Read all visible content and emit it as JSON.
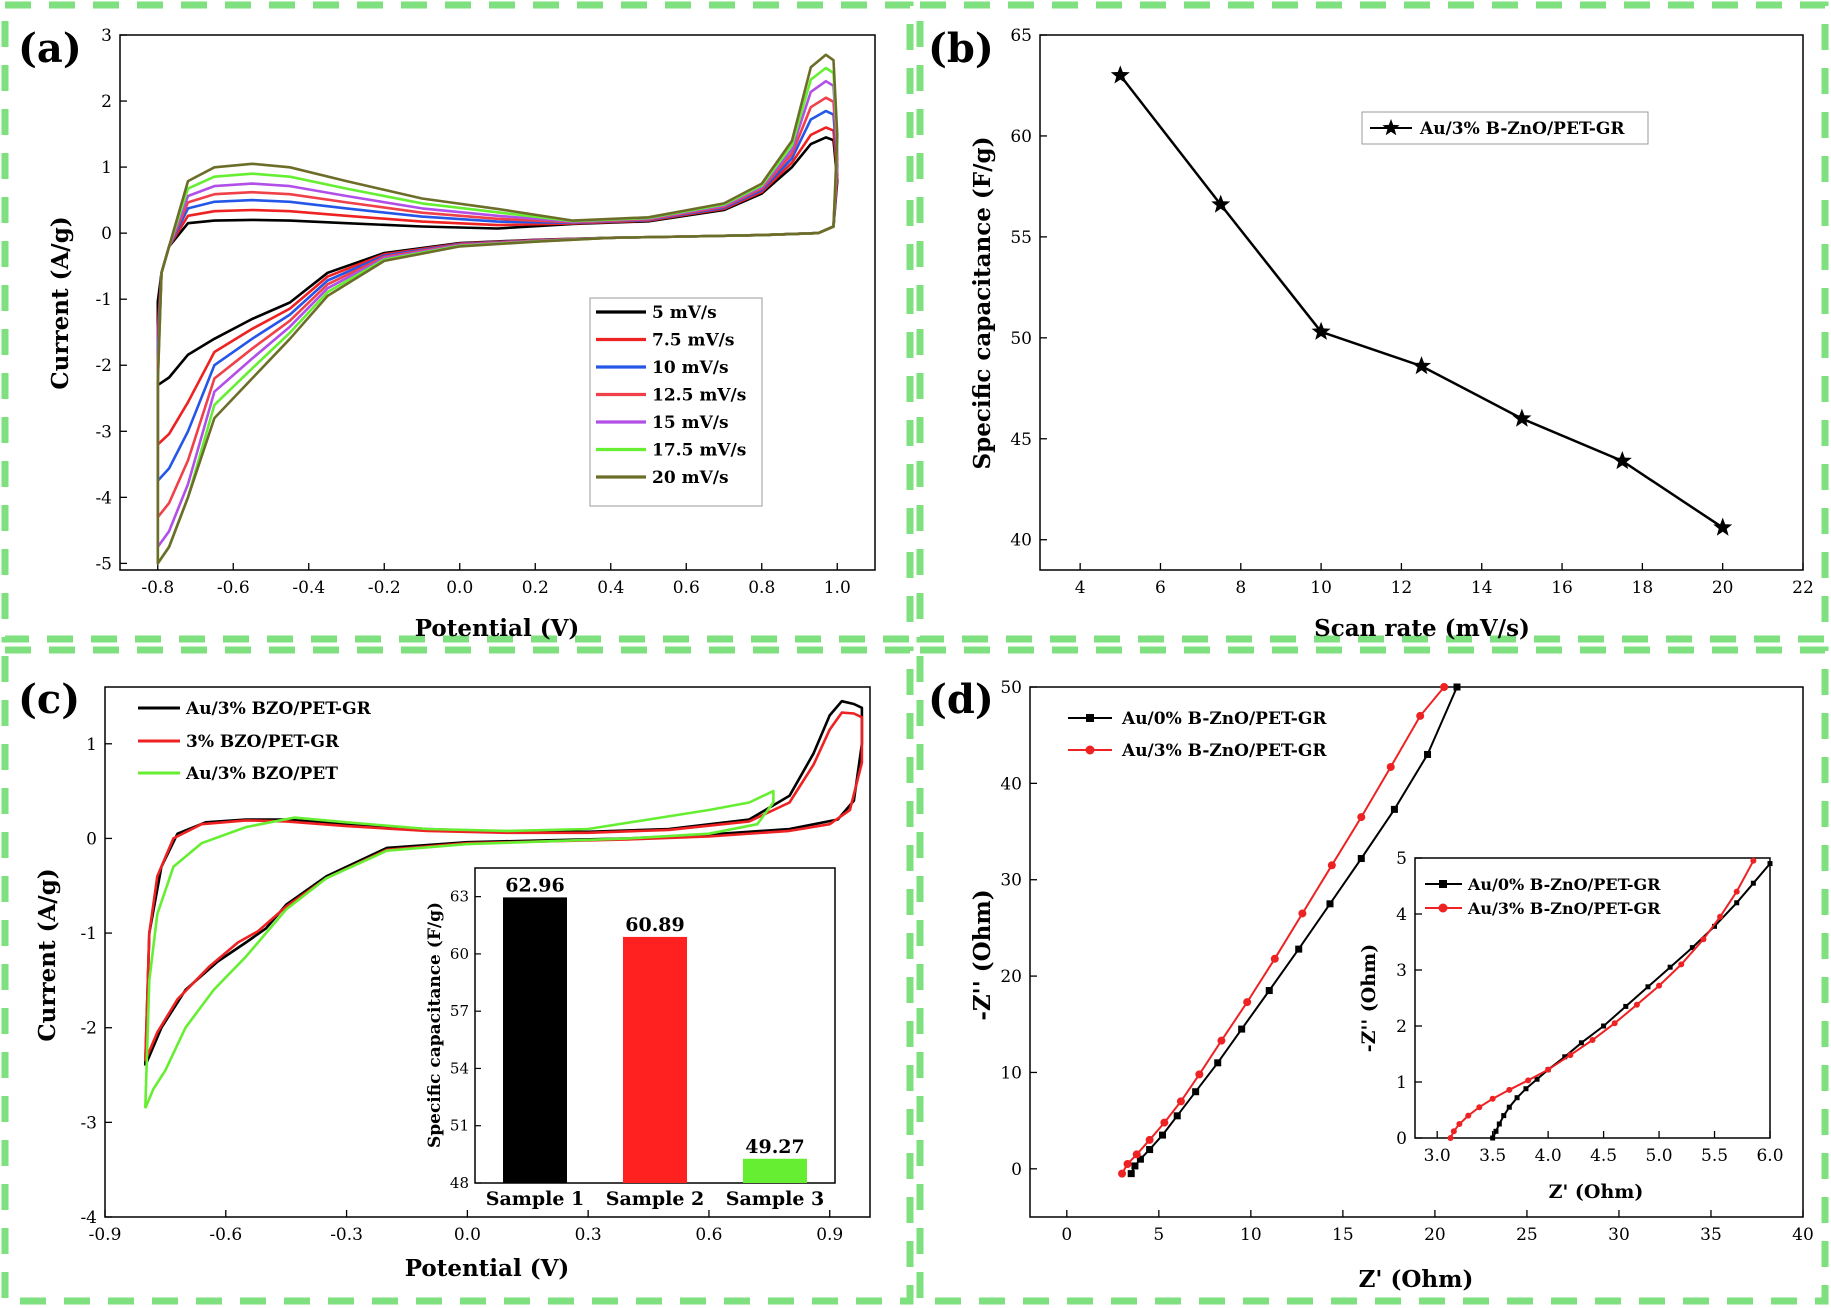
{
  "panels": {
    "a": "(a)",
    "b": "(b)",
    "c": "(c)",
    "d": "(d)"
  },
  "colors": {
    "frame": "#7ee07e",
    "black": "#000000",
    "red": "#ee2222",
    "blue": "#2457e8",
    "red2": "#f0404a",
    "violet": "#b14fe8",
    "green": "#66ee33",
    "olive": "#6d6d2a"
  },
  "chart_data": [
    {
      "id": "a",
      "type": "line",
      "xlabel": "Potential (V)",
      "ylabel": "Current (A/g)",
      "xlim": [
        -0.9,
        1.1
      ],
      "ylim": [
        -5.1,
        3
      ],
      "xticks": [
        "-0.8",
        "-0.6",
        "-0.4",
        "-0.2",
        "0.0",
        "0.2",
        "0.4",
        "0.6",
        "0.8",
        "1.0"
      ],
      "yticks": [
        "-5",
        "-4",
        "-3",
        "-2",
        "-1",
        "0",
        "1",
        "2",
        "3"
      ],
      "legend_position": "center-right",
      "series": [
        {
          "name": "5 mV/s",
          "color": "#000000",
          "anodic_peak": 1.45,
          "cathodic_min": -2.3,
          "mid_top": 0.2
        },
        {
          "name": "7.5 mV/s",
          "color": "#ee2222",
          "anodic_peak": 1.6,
          "cathodic_min": -3.2,
          "mid_top": 0.35
        },
        {
          "name": "10 mV/s",
          "color": "#2457e8",
          "anodic_peak": 1.85,
          "cathodic_min": -3.75,
          "mid_top": 0.5
        },
        {
          "name": "12.5 mV/s",
          "color": "#f0404a",
          "anodic_peak": 2.05,
          "cathodic_min": -4.3,
          "mid_top": 0.62
        },
        {
          "name": "15 mV/s",
          "color": "#b14fe8",
          "anodic_peak": 2.3,
          "cathodic_min": -4.75,
          "mid_top": 0.75
        },
        {
          "name": "17.5 mV/s",
          "color": "#66ee33",
          "anodic_peak": 2.5,
          "cathodic_min": -5.0,
          "mid_top": 0.9
        },
        {
          "name": "20 mV/s",
          "color": "#6d6d2a",
          "anodic_peak": 2.7,
          "cathodic_min": -5.0,
          "mid_top": 1.05
        }
      ]
    },
    {
      "id": "b",
      "type": "line",
      "xlabel": "Scan rate (mV/s)",
      "ylabel": "Specific capacitance (F/g)",
      "xlim": [
        3,
        22
      ],
      "ylim": [
        38.5,
        65
      ],
      "xticks": [
        "4",
        "6",
        "8",
        "10",
        "12",
        "14",
        "16",
        "18",
        "20",
        "22"
      ],
      "yticks": [
        "40",
        "45",
        "50",
        "55",
        "60",
        "65"
      ],
      "legend_position": "top-right",
      "series": [
        {
          "name": "Au/3% B-ZnO/PET-GR",
          "color": "#000000",
          "x": [
            5,
            7.5,
            10,
            12.5,
            15,
            17.5,
            20
          ],
          "y": [
            63.0,
            56.6,
            50.3,
            48.6,
            46.0,
            43.9,
            40.6
          ]
        }
      ]
    },
    {
      "id": "c",
      "type": "line",
      "xlabel": "Potential (V)",
      "ylabel": "Current (A/g)",
      "xlim": [
        -0.9,
        1.0
      ],
      "ylim": [
        -4,
        1.6
      ],
      "xticks": [
        "-0.9",
        "-0.6",
        "-0.3",
        "0.0",
        "0.3",
        "0.6",
        "0.9"
      ],
      "yticks": [
        "-4",
        "-3",
        "-2",
        "-1",
        "0",
        "1"
      ],
      "legend_position": "top-left",
      "series": [
        {
          "name": "Au/3% BZO/PET-GR",
          "color": "#000000"
        },
        {
          "name": "3% BZO/PET-GR",
          "color": "#ee2222"
        },
        {
          "name": "Au/3% BZO/PET",
          "color": "#66ee33"
        }
      ],
      "inset": {
        "type": "bar",
        "ylabel": "Specific capacitance (F/g)",
        "ylim": [
          48,
          64.5
        ],
        "yticks": [
          "48",
          "51",
          "54",
          "57",
          "60",
          "63"
        ],
        "categories": [
          "Sample 1",
          "Sample 2",
          "Sample 3"
        ],
        "values": [
          62.96,
          60.89,
          49.27
        ],
        "value_labels": [
          "62.96",
          "60.89",
          "49.27"
        ],
        "colors": [
          "#000000",
          "#ff2020",
          "#66ee33"
        ]
      }
    },
    {
      "id": "d",
      "type": "scatter",
      "xlabel": "Z' (Ohm)",
      "ylabel": "-Z'' (Ohm)",
      "xlim": [
        -2,
        40
      ],
      "ylim": [
        -5,
        50
      ],
      "xticks": [
        "0",
        "5",
        "10",
        "15",
        "20",
        "25",
        "30",
        "35",
        "40"
      ],
      "yticks": [
        "0",
        "10",
        "20",
        "30",
        "40",
        "50"
      ],
      "legend_position": "top-left",
      "series": [
        {
          "name": "Au/0% B-ZnO/PET-GR",
          "color": "#000000",
          "x": [
            3.5,
            3.7,
            4.0,
            4.5,
            5.2,
            6.0,
            7.0,
            8.2,
            9.5,
            11.0,
            12.6,
            14.3,
            16.0,
            17.8,
            19.6,
            21.2
          ],
          "y": [
            -0.5,
            0.3,
            1.0,
            2.0,
            3.5,
            5.5,
            8.0,
            11.0,
            14.5,
            18.5,
            22.8,
            27.5,
            32.2,
            37.3,
            43.0,
            50.0
          ]
        },
        {
          "name": "Au/3% B-ZnO/PET-GR",
          "color": "#ee2222",
          "x": [
            3.0,
            3.3,
            3.8,
            4.5,
            5.3,
            6.2,
            7.2,
            8.4,
            9.8,
            11.3,
            12.8,
            14.4,
            16.0,
            17.6,
            19.2,
            20.5
          ],
          "y": [
            -0.5,
            0.5,
            1.5,
            3.0,
            4.8,
            7.0,
            9.8,
            13.3,
            17.3,
            21.8,
            26.5,
            31.5,
            36.5,
            41.7,
            47.0,
            50.0
          ]
        }
      ],
      "inset": {
        "xlabel": "Z' (Ohm)",
        "ylabel": "-Z'' (Ohm)",
        "xlim": [
          2.8,
          6.0
        ],
        "ylim": [
          0,
          5
        ],
        "xticks": [
          "3.0",
          "3.5",
          "4.0",
          "4.5",
          "5.0",
          "5.5",
          "6.0"
        ],
        "yticks": [
          "0",
          "1",
          "2",
          "3",
          "4",
          "5"
        ],
        "series": [
          {
            "name": "Au/0% B-ZnO/PET-GR",
            "color": "#000000",
            "x": [
              3.5,
              3.53,
              3.56,
              3.6,
              3.65,
              3.72,
              3.8,
              3.9,
              4.0,
              4.15,
              4.3,
              4.5,
              4.7,
              4.9,
              5.1,
              5.3,
              5.5,
              5.7,
              5.85,
              6.0
            ],
            "y": [
              0.0,
              0.12,
              0.25,
              0.4,
              0.55,
              0.72,
              0.88,
              1.05,
              1.22,
              1.45,
              1.7,
              2.0,
              2.35,
              2.7,
              3.05,
              3.4,
              3.78,
              4.2,
              4.55,
              4.9
            ]
          },
          {
            "name": "Au/3% B-ZnO/PET-GR",
            "color": "#ee2222",
            "x": [
              3.12,
              3.15,
              3.2,
              3.28,
              3.38,
              3.5,
              3.65,
              3.82,
              4.0,
              4.2,
              4.4,
              4.6,
              4.8,
              5.0,
              5.2,
              5.4,
              5.55,
              5.7,
              5.85
            ],
            "y": [
              0.0,
              0.12,
              0.25,
              0.4,
              0.55,
              0.7,
              0.86,
              1.03,
              1.22,
              1.48,
              1.75,
              2.05,
              2.38,
              2.72,
              3.1,
              3.55,
              3.95,
              4.4,
              4.95
            ]
          }
        ]
      }
    }
  ]
}
